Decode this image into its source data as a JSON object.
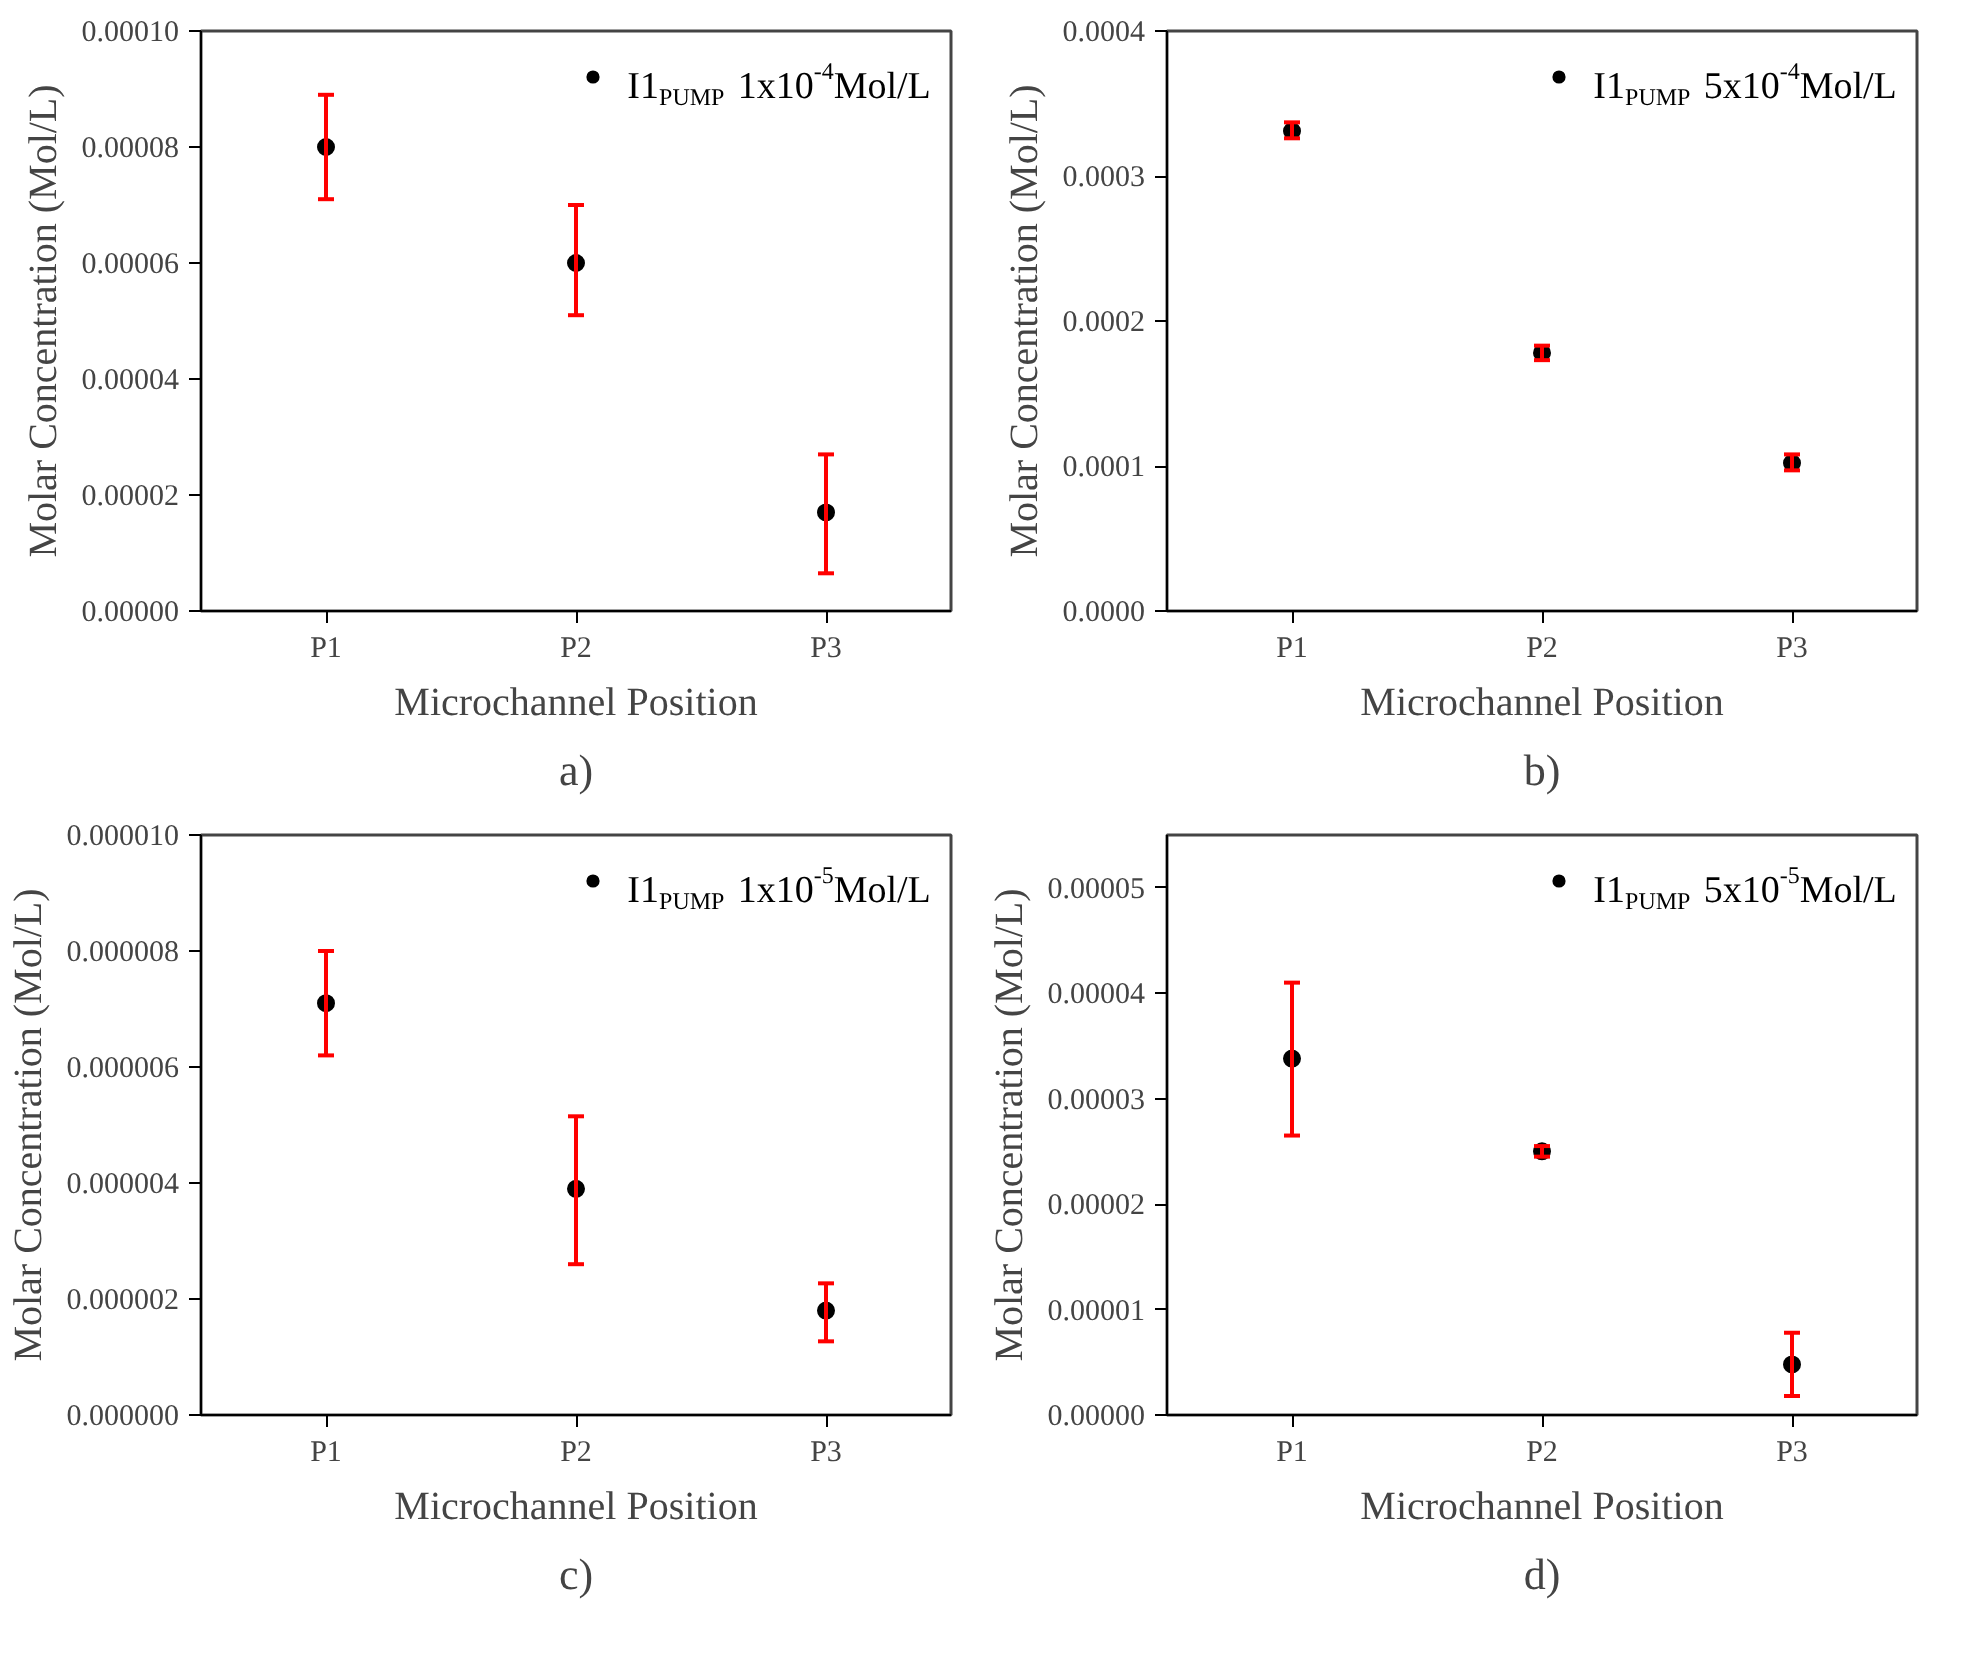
{
  "chart_data": [
    {
      "type": "scatter",
      "xlabel": "Microchannel Position",
      "ylabel": "Molar Concentration (Mol/L)",
      "annotations": [
        "a)"
      ],
      "categories": [
        "P1",
        "P2",
        "P3"
      ],
      "ylim": [
        0,
        0.0001
      ],
      "yticks": [
        {
          "value": 0,
          "label": "0.00000"
        },
        {
          "value": 2e-05,
          "label": "0.00002"
        },
        {
          "value": 4e-05,
          "label": "0.00004"
        },
        {
          "value": 6e-05,
          "label": "0.00006"
        },
        {
          "value": 8e-05,
          "label": "0.00008"
        },
        {
          "value": 0.0001,
          "label": "0.00010"
        }
      ],
      "legend": "top right",
      "marker": "circle",
      "grid": false,
      "series": [
        {
          "name": "I1$_{PUMP}$ 1x10$^{-4}$Mol/L",
          "color": "#000000",
          "values": [
            8e-05,
            6e-05,
            1.7e-05
          ],
          "errors": [
            [
              7.1e-05,
              8.9e-05
            ],
            [
              5.1e-05,
              7e-05
            ],
            [
              6.5e-06,
              2.7e-05
            ]
          ]
        }
      ]
    },
    {
      "type": "scatter",
      "xlabel": "Microchannel Position",
      "ylabel": "Molar Concentration (Mol/L)",
      "annotations": [
        "b)"
      ],
      "categories": [
        "P1",
        "P2",
        "P3"
      ],
      "ylim": [
        0,
        0.0004
      ],
      "yticks": [
        {
          "value": 0,
          "label": "0.0000"
        },
        {
          "value": 0.0001,
          "label": "0.0001"
        },
        {
          "value": 0.0002,
          "label": "0.0002"
        },
        {
          "value": 0.0003,
          "label": "0.0003"
        },
        {
          "value": 0.0004,
          "label": "0.0004"
        }
      ],
      "legend": "top right",
      "marker": "circle",
      "grid": false,
      "series": [
        {
          "name": "I1$_{PUMP}$ 5x10$^{-4}$Mol/L",
          "color": "#000000",
          "values": [
            0.000331,
            0.000178,
            0.000102
          ],
          "errors": [
            [
              0.000326,
              0.000337
            ],
            [
              0.000173,
              0.000183
            ],
            [
              9.7e-05,
              0.000108
            ]
          ]
        }
      ]
    },
    {
      "type": "scatter",
      "xlabel": "Microchannel Position",
      "ylabel": "Molar Concentration (Mol/L)",
      "annotations": [
        "c)"
      ],
      "categories": [
        "P1",
        "P2",
        "P3"
      ],
      "ylim": [
        0,
        1e-05
      ],
      "yticks": [
        {
          "value": 0,
          "label": "0.000000"
        },
        {
          "value": 2e-06,
          "label": "0.000002"
        },
        {
          "value": 4e-06,
          "label": "0.000004"
        },
        {
          "value": 6e-06,
          "label": "0.000006"
        },
        {
          "value": 8e-06,
          "label": "0.000008"
        },
        {
          "value": 1e-05,
          "label": "0.000010"
        }
      ],
      "legend": "top right",
      "marker": "circle",
      "grid": false,
      "series": [
        {
          "name": "I1$_{PUMP}$ 1x10$^{-5}$Mol/L",
          "color": "#000000",
          "values": [
            7.1e-06,
            3.9e-06,
            1.8e-06
          ],
          "errors": [
            [
              6.2e-06,
              8e-06
            ],
            [
              2.6e-06,
              5.15e-06
            ],
            [
              1.27e-06,
              2.27e-06
            ]
          ]
        }
      ]
    },
    {
      "type": "scatter",
      "xlabel": "Microchannel Position",
      "ylabel": "Molar Concentration (Mol/L)",
      "annotations": [
        "d)"
      ],
      "categories": [
        "P1",
        "P2",
        "P3"
      ],
      "ylim": [
        0,
        5.5e-05
      ],
      "yticks": [
        {
          "value": 0,
          "label": "0.00000"
        },
        {
          "value": 1e-05,
          "label": "0.00001"
        },
        {
          "value": 2e-05,
          "label": "0.00002"
        },
        {
          "value": 3e-05,
          "label": "0.00003"
        },
        {
          "value": 4e-05,
          "label": "0.00004"
        },
        {
          "value": 5e-05,
          "label": "0.00005"
        }
      ],
      "legend": "top right",
      "marker": "circle",
      "grid": false,
      "series": [
        {
          "name": "I1$_{PUMP}$ 5x10$^{-5}$Mol/L",
          "color": "#000000",
          "values": [
            3.38e-05,
            2.5e-05,
            4.8e-06
          ],
          "errors": [
            [
              2.65e-05,
              4.1e-05
            ],
            [
              2.45e-05,
              2.55e-05
            ],
            [
              1.8e-06,
              7.8e-06
            ]
          ]
        }
      ]
    }
  ]
}
